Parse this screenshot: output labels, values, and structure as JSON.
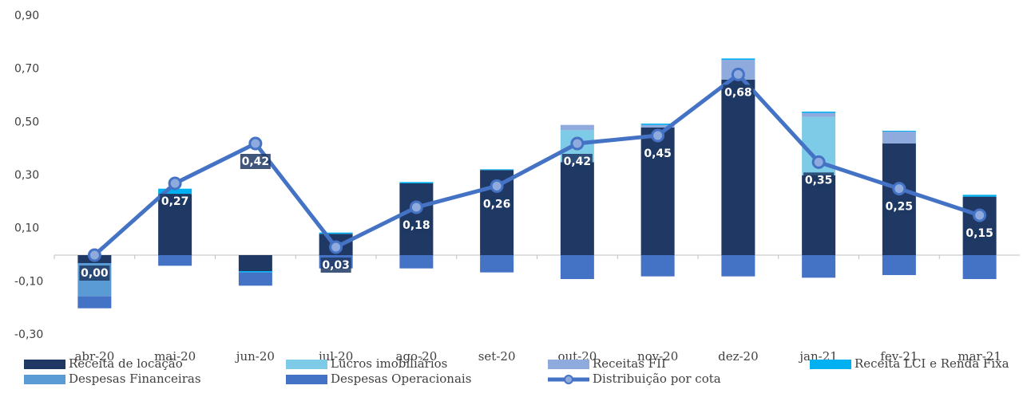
{
  "chart_data": {
    "type": "bar",
    "categories": [
      "abr-20",
      "mai-20",
      "jun-20",
      "jul-20",
      "ago-20",
      "set-20",
      "out-20",
      "nov-20",
      "dez-20",
      "jan-21",
      "fev-21",
      "mar-21"
    ],
    "series": [
      {
        "name": "Receita de locação",
        "color": "#1f3864",
        "values": [
          -0.03,
          0.23,
          -0.06,
          0.08,
          0.27,
          0.32,
          0.35,
          0.48,
          0.66,
          0.3,
          0.42,
          0.22
        ]
      },
      {
        "name": "Lucros imobiliários",
        "color": "#7ecbe8",
        "values": [
          0,
          0,
          0,
          0,
          0,
          0,
          0.12,
          0,
          0,
          0.22,
          0,
          0
        ]
      },
      {
        "name": "Receitas FII",
        "color": "#8faadc",
        "values": [
          0,
          0,
          0,
          0,
          0,
          0,
          0.02,
          0.01,
          0.075,
          0.015,
          0.045,
          0
        ]
      },
      {
        "name": "Receita LCI e Renda Fixa",
        "color": "#00b0f0",
        "values": [
          0,
          0.02,
          -0.005,
          0.005,
          0.005,
          0.003,
          0,
          0.005,
          0.005,
          0.005,
          0.003,
          0.007
        ]
      },
      {
        "name": "Despesas Financeiras",
        "color": "#5b9bd5",
        "values": [
          -0.125,
          0,
          0,
          0,
          0,
          0,
          0,
          0,
          0,
          0,
          0,
          0
        ]
      },
      {
        "name": "Despesas Operacionais",
        "color": "#4472c4",
        "values": [
          -0.045,
          -0.04,
          -0.05,
          -0.05,
          -0.05,
          -0.065,
          -0.09,
          -0.08,
          -0.08,
          -0.085,
          -0.075,
          -0.09
        ]
      },
      {
        "name": "Distribuição por cota",
        "type": "line",
        "color": "#4472c4",
        "values": [
          0.0,
          0.27,
          0.42,
          0.03,
          0.18,
          0.26,
          0.42,
          0.45,
          0.68,
          0.35,
          0.25,
          0.15
        ],
        "value_labels": [
          "0,00",
          "0,27",
          "0,42",
          "0,03",
          "0,18",
          "0,26",
          "0,42",
          "0,45",
          "0,68",
          "0,35",
          "0,25",
          "0,15"
        ]
      }
    ],
    "ylim": [
      -0.3,
      0.9
    ],
    "yticks": [
      {
        "value": -0.3,
        "label": "-0,30"
      },
      {
        "value": -0.1,
        "label": "-0,10"
      },
      {
        "value": 0.1,
        "label": "0,10"
      },
      {
        "value": 0.3,
        "label": "0,30"
      },
      {
        "value": 0.5,
        "label": "0,50"
      },
      {
        "value": 0.7,
        "label": "0,70"
      },
      {
        "value": 0.9,
        "label": "0,90"
      }
    ],
    "legend": "bottom"
  }
}
